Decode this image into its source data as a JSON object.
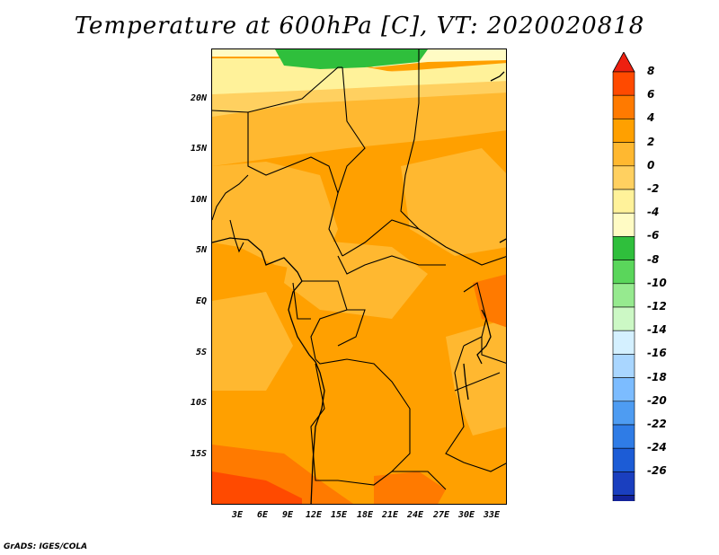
{
  "title": "Temperature at 600hPa [C], VT: 2020020818",
  "credit": "GrADS: IGES/COLA",
  "lat_labels": [
    "20N",
    "15N",
    "10N",
    "5N",
    "EQ",
    "5S",
    "10S",
    "15S"
  ],
  "lon_labels": [
    "3E",
    "6E",
    "9E",
    "12E",
    "15E",
    "18E",
    "21E",
    "24E",
    "27E",
    "30E",
    "33E"
  ],
  "colorbar": {
    "labels": [
      "8",
      "6",
      "4",
      "2",
      "0",
      "-2",
      "-4",
      "-6",
      "-8",
      "-10",
      "-12",
      "-14",
      "-16",
      "-18",
      "-20",
      "-22",
      "-24",
      "-26"
    ],
    "colors": [
      "#ee2010",
      "#ff4a00",
      "#ff7a00",
      "#ffa000",
      "#ffb830",
      "#ffd060",
      "#fff29a",
      "#fffbc4",
      "#2fbf3c",
      "#5ad65b",
      "#96ea8f",
      "#ccf8c5",
      "#d4f0ff",
      "#a9d6ff",
      "#7cbcff",
      "#4e9cf2",
      "#2f7ce6",
      "#1c5cd6",
      "#1a3fbf",
      "#13239a",
      "#0b0b6c"
    ]
  },
  "colors": {
    "base": "#ffa000",
    "light": "#ffb830",
    "pale": "#ffd060",
    "cream": "#fff29a",
    "green": "#2fbf3c",
    "dark_orange": "#ff7a00",
    "red": "#ff4a00"
  }
}
